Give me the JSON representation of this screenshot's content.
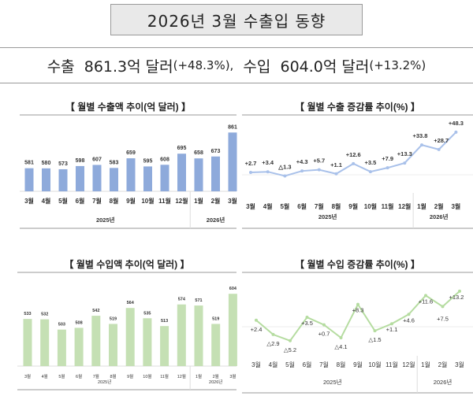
{
  "header": {
    "title": "2026년 3월 수출입 동향"
  },
  "summary": {
    "export_label": "수출",
    "export_value": "861.3억 달러",
    "export_rate": "(+48.3%),",
    "import_label": "수입",
    "import_value": "604.0억 달러",
    "import_rate": "(+13.2%)"
  },
  "chart_data": [
    {
      "type": "bar",
      "title": "【 월별 수출액 추이(억 달러) 】",
      "categories": [
        "3월",
        "4월",
        "5월",
        "6월",
        "7월",
        "8월",
        "9월",
        "10월",
        "11월",
        "12월",
        "1월",
        "2월",
        "3월"
      ],
      "groups": [
        {
          "label": "2025년",
          "count": 10
        },
        {
          "label": "2026년",
          "count": 3
        }
      ],
      "values": [
        581,
        580,
        573,
        598,
        607,
        583,
        659,
        595,
        608,
        695,
        658,
        673,
        861
      ],
      "ylim": [
        400,
        900
      ],
      "color": "#8eaadb"
    },
    {
      "type": "line",
      "title": "【 월별 수출 증감률 추이(%) 】",
      "categories": [
        "3월",
        "4월",
        "5월",
        "6월",
        "7월",
        "8월",
        "9월",
        "10월",
        "11월",
        "12월",
        "1월",
        "2월",
        "3월"
      ],
      "groups": [
        {
          "label": "2025년",
          "count": 10
        },
        {
          "label": "2026년",
          "count": 3
        }
      ],
      "values": [
        2.7,
        3.4,
        -1.3,
        4.3,
        5.7,
        1.1,
        12.6,
        3.5,
        7.9,
        13.3,
        33.8,
        28.7,
        48.3
      ],
      "labels": [
        "+2.7",
        "+3.4",
        "△1.3",
        "+4.3",
        "+5.7",
        "+1.1",
        "+12.6",
        "+3.5",
        "+7.9",
        "+13.3",
        "+33.8",
        "+28.7",
        "+48.3"
      ],
      "color": "#a9c1ea"
    },
    {
      "type": "bar",
      "title": "【 월별 수입액 추이(억 달러) 】",
      "categories": [
        "3월",
        "4월",
        "5월",
        "6월",
        "7월",
        "8월",
        "9월",
        "10월",
        "11월",
        "12월",
        "1월",
        "2월",
        "3월"
      ],
      "groups": [
        {
          "label": "2025년",
          "count": 10
        },
        {
          "label": "2026년",
          "count": 3
        }
      ],
      "values": [
        533,
        532,
        503,
        508,
        542,
        519,
        564,
        535,
        513,
        574,
        571,
        519,
        604
      ],
      "ylim": [
        400,
        620
      ],
      "color": "#c5e0b4"
    },
    {
      "type": "line",
      "title": "【 월별 수입 증감률 추이(%) 】",
      "categories": [
        "3월",
        "4월",
        "5월",
        "6월",
        "7월",
        "8월",
        "9월",
        "10월",
        "11월",
        "12월",
        "1월",
        "2월",
        "3월"
      ],
      "groups": [
        {
          "label": "2025년",
          "count": 10
        },
        {
          "label": "2026년",
          "count": 3
        }
      ],
      "values": [
        2.4,
        -2.9,
        -5.2,
        3.5,
        0.7,
        -4.1,
        8.3,
        -1.5,
        1.1,
        4.6,
        11.6,
        7.5,
        13.2
      ],
      "labels": [
        "+2.4",
        "△2.9",
        "△5.2",
        "+3.5",
        "+0.7",
        "△4.1",
        "+8.3",
        "△1.5",
        "+1.1",
        "+4.6",
        "+11.6",
        "+7.5",
        "+13.2"
      ],
      "color": "#b5dca0"
    }
  ]
}
